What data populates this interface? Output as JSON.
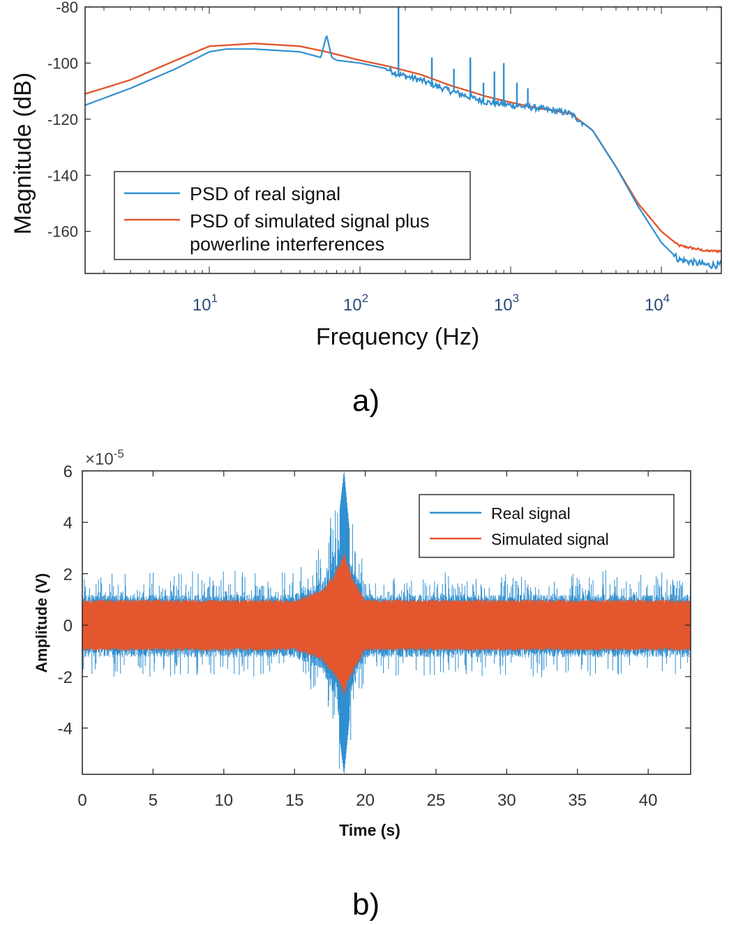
{
  "chart_data": [
    {
      "type": "line",
      "title": "",
      "xlabel": "Frequency (Hz)",
      "ylabel": "Magnitude (dB)",
      "xscale": "log",
      "xlim": [
        1.5,
        25000
      ],
      "ylim": [
        -175,
        -80
      ],
      "yticks": [
        -80,
        -100,
        -120,
        -140,
        -160
      ],
      "xticks": [
        {
          "value": 10,
          "base": "10",
          "exp": "1"
        },
        {
          "value": 100,
          "base": "10",
          "exp": "2"
        },
        {
          "value": 1000,
          "base": "10",
          "exp": "3"
        },
        {
          "value": 10000,
          "base": "10",
          "exp": "4"
        }
      ],
      "legend_position": "lower-left",
      "series": [
        {
          "name": "PSD of real signal",
          "color": "#2f8fd0",
          "x": [
            1.5,
            3,
            6,
            10,
            13,
            20,
            40,
            55,
            60,
            65,
            70,
            100,
            150,
            180,
            250,
            400,
            700,
            1000,
            1500,
            2500,
            3500,
            5000,
            7000,
            10000,
            13000,
            20000,
            25000
          ],
          "y": [
            -115,
            -109,
            -102,
            -96,
            -95,
            -95,
            -96,
            -98,
            -90,
            -98,
            -99,
            -100,
            -102,
            -104,
            -106,
            -110,
            -114,
            -115,
            -116,
            -118,
            -124,
            -137,
            -151,
            -164,
            -170,
            -172,
            -172
          ],
          "spikes": [
            {
              "x": 180,
              "top": -80
            },
            {
              "x": 300,
              "top": -98
            },
            {
              "x": 420,
              "top": -102
            },
            {
              "x": 540,
              "top": -98
            },
            {
              "x": 660,
              "top": -107
            },
            {
              "x": 780,
              "top": -103
            },
            {
              "x": 900,
              "top": -100
            },
            {
              "x": 1100,
              "top": -107
            },
            {
              "x": 1300,
              "top": -109
            }
          ]
        },
        {
          "name": "PSD of simulated signal plus powerline interferences",
          "color": "#e4572e",
          "x": [
            1.5,
            3,
            6,
            10,
            20,
            40,
            60,
            100,
            150,
            250,
            400,
            700,
            1000,
            1500,
            2500,
            3500,
            5000,
            7000,
            10000,
            13000,
            20000,
            25000
          ],
          "y": [
            -111,
            -106,
            -99,
            -94,
            -93,
            -94,
            -96,
            -99,
            -101,
            -104,
            -108,
            -112,
            -114,
            -116,
            -118,
            -124,
            -137,
            -150,
            -160,
            -165,
            -167,
            -167
          ],
          "spikes": [
            {
              "x": 180,
              "top": -80
            },
            {
              "x": 300,
              "top": -99
            },
            {
              "x": 540,
              "top": -100
            }
          ]
        }
      ],
      "caption": "a)"
    },
    {
      "type": "line",
      "title": "",
      "xlabel": "Time (s)",
      "ylabel": "Amplitude (V)",
      "y_exponent_base": "×10",
      "y_exponent": "-5",
      "xlim": [
        0,
        43
      ],
      "ylim": [
        -5.8,
        6
      ],
      "xticks": [
        0,
        5,
        10,
        15,
        20,
        25,
        30,
        35,
        40
      ],
      "yticks": [
        6,
        4,
        2,
        0,
        -2,
        -4
      ],
      "legend_position": "top-right",
      "series": [
        {
          "name": "Real signal",
          "color": "#2f8fd0",
          "envelope_x": [
            0,
            5,
            10,
            15,
            17,
            18,
            18.5,
            19,
            20,
            25,
            30,
            35,
            40,
            43
          ],
          "envelope_max": [
            1.4,
            1.4,
            1.4,
            1.4,
            2.0,
            3.5,
            6.0,
            3.0,
            1.4,
            1.4,
            1.4,
            1.4,
            1.4,
            1.4
          ],
          "envelope_min": [
            -1.4,
            -1.4,
            -1.4,
            -1.4,
            -2.0,
            -3.5,
            -5.8,
            -3.0,
            -1.4,
            -1.4,
            -1.4,
            -1.4,
            -1.4,
            -1.4
          ]
        },
        {
          "name": "Simulated signal",
          "color": "#e4572e",
          "envelope_x": [
            0,
            5,
            10,
            15,
            17,
            18,
            18.5,
            19,
            20,
            25,
            30,
            35,
            40,
            43
          ],
          "envelope_max": [
            1.0,
            1.0,
            1.0,
            1.0,
            1.4,
            2.2,
            3.0,
            2.0,
            1.0,
            1.0,
            1.0,
            1.0,
            1.0,
            1.0
          ],
          "envelope_min": [
            -1.0,
            -1.0,
            -1.0,
            -1.0,
            -1.4,
            -2.2,
            -2.8,
            -2.0,
            -1.0,
            -1.0,
            -1.0,
            -1.0,
            -1.0,
            -1.0
          ]
        }
      ],
      "caption": "b)"
    }
  ]
}
